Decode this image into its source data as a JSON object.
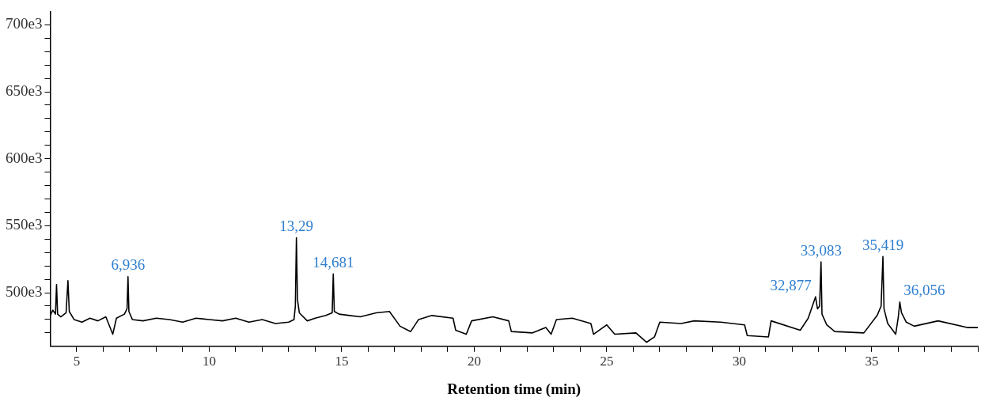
{
  "chart_data": {
    "type": "line",
    "xlabel": "Retention time (min)",
    "xlim": [
      4,
      39
    ],
    "ylim": [
      460000,
      710000
    ],
    "xticks": [
      5,
      {
        "value": 6,
        "label": null
      },
      {
        "value": 7,
        "label": null
      },
      {
        "value": 8,
        "label": null
      },
      {
        "value": 9,
        "label": null
      },
      10,
      {
        "value": 11,
        "label": null
      },
      {
        "value": 12,
        "label": null
      },
      {
        "value": 13,
        "label": null
      },
      {
        "value": 14,
        "label": null
      },
      15,
      {
        "value": 16,
        "label": null
      },
      {
        "value": 17,
        "label": null
      },
      {
        "value": 18,
        "label": null
      },
      {
        "value": 19,
        "label": null
      },
      20,
      {
        "value": 21,
        "label": null
      },
      {
        "value": 22,
        "label": null
      },
      {
        "value": 23,
        "label": null
      },
      {
        "value": 24,
        "label": null
      },
      25,
      {
        "value": 26,
        "label": null
      },
      {
        "value": 27,
        "label": null
      },
      {
        "value": 28,
        "label": null
      },
      {
        "value": 29,
        "label": null
      },
      30,
      {
        "value": 31,
        "label": null
      },
      {
        "value": 32,
        "label": null
      },
      {
        "value": 33,
        "label": null
      },
      {
        "value": 34,
        "label": null
      },
      35,
      {
        "value": 36,
        "label": null
      },
      {
        "value": 37,
        "label": null
      },
      {
        "value": 38,
        "label": null
      },
      {
        "value": 39,
        "label": null
      }
    ],
    "yticks": [
      {
        "value": 470000,
        "label": null
      },
      {
        "value": 480000,
        "label": null
      },
      {
        "value": 490000,
        "label": null
      },
      {
        "value": 500000,
        "label": "500e3"
      },
      {
        "value": 510000,
        "label": null
      },
      {
        "value": 520000,
        "label": null
      },
      {
        "value": 530000,
        "label": null
      },
      {
        "value": 540000,
        "label": null
      },
      {
        "value": 550000,
        "label": "550e3"
      },
      {
        "value": 560000,
        "label": null
      },
      {
        "value": 570000,
        "label": null
      },
      {
        "value": 580000,
        "label": null
      },
      {
        "value": 590000,
        "label": null
      },
      {
        "value": 600000,
        "label": "600e3"
      },
      {
        "value": 610000,
        "label": null
      },
      {
        "value": 620000,
        "label": null
      },
      {
        "value": 630000,
        "label": null
      },
      {
        "value": 640000,
        "label": null
      },
      {
        "value": 650000,
        "label": "650e3"
      },
      {
        "value": 660000,
        "label": null
      },
      {
        "value": 670000,
        "label": null
      },
      {
        "value": 680000,
        "label": null
      },
      {
        "value": 690000,
        "label": null
      },
      {
        "value": 700000,
        "label": "700e3"
      }
    ],
    "grid": false,
    "legend": false,
    "marker": "none",
    "line_style": "solid",
    "series": [
      {
        "color": "#000000",
        "x": [
          4.0,
          4.1,
          4.2,
          4.24,
          4.28,
          4.4,
          4.6,
          4.67,
          4.72,
          4.9,
          5.2,
          5.5,
          5.8,
          6.1,
          6.36,
          6.5,
          6.8,
          6.9,
          6.936,
          6.97,
          7.1,
          7.5,
          8.0,
          8.5,
          9.0,
          9.5,
          10.0,
          10.5,
          11.0,
          11.5,
          12.0,
          12.5,
          13.0,
          13.2,
          13.25,
          13.29,
          13.33,
          13.4,
          13.7,
          14.0,
          14.4,
          14.64,
          14.681,
          14.72,
          14.9,
          15.3,
          15.7,
          16.3,
          16.8,
          17.2,
          17.6,
          17.9,
          18.4,
          19.2,
          19.3,
          19.7,
          19.9,
          20.7,
          21.3,
          21.4,
          22.2,
          22.7,
          22.9,
          23.1,
          23.7,
          24.4,
          24.5,
          25.0,
          25.3,
          26.1,
          26.5,
          26.8,
          27.0,
          27.8,
          28.3,
          29.3,
          30.2,
          30.3,
          31.1,
          31.2,
          32.3,
          32.6,
          32.877,
          32.95,
          33.03,
          33.083,
          33.12,
          33.3,
          33.6,
          34.7,
          35.2,
          35.35,
          35.419,
          35.46,
          35.6,
          35.9,
          36.0,
          36.056,
          36.12,
          36.3,
          36.6,
          37.5,
          38.6,
          39.0
        ],
        "values": [
          483000,
          487000,
          484000,
          506000,
          484000,
          482000,
          485000,
          509000,
          486000,
          480000,
          478000,
          481000,
          479000,
          482000,
          469000,
          481000,
          484000,
          488000,
          512000,
          486000,
          480000,
          479000,
          481000,
          480000,
          478000,
          481000,
          480000,
          479000,
          481000,
          478000,
          480000,
          477000,
          478000,
          480000,
          490000,
          541000,
          495000,
          485000,
          479000,
          481000,
          483000,
          485000,
          514000,
          486000,
          484000,
          483000,
          482000,
          485000,
          486000,
          475000,
          471000,
          480000,
          483000,
          481000,
          472000,
          469000,
          479000,
          482000,
          479000,
          471000,
          470000,
          474000,
          469000,
          480000,
          481000,
          477000,
          469000,
          476000,
          469000,
          470000,
          463000,
          467000,
          478000,
          477000,
          479000,
          478000,
          476000,
          468000,
          467000,
          479000,
          472000,
          481000,
          497000,
          488000,
          490000,
          523000,
          484000,
          476000,
          471000,
          470000,
          483000,
          490000,
          527000,
          488000,
          477000,
          469000,
          482000,
          493000,
          485000,
          478000,
          475000,
          479000,
          474000,
          474000
        ]
      }
    ],
    "annotations": [
      {
        "text": "6,936",
        "x": 6.936,
        "y": 512000
      },
      {
        "text": "13,29",
        "x": 13.29,
        "y": 541000
      },
      {
        "text": "14,681",
        "x": 14.681,
        "y": 514000
      },
      {
        "text": "32,877",
        "x": 32.877,
        "y": 497000
      },
      {
        "text": "33,083",
        "x": 33.083,
        "y": 523000
      },
      {
        "text": "35,419",
        "x": 35.419,
        "y": 527000
      },
      {
        "text": "36,056",
        "x": 36.056,
        "y": 493000
      }
    ]
  }
}
